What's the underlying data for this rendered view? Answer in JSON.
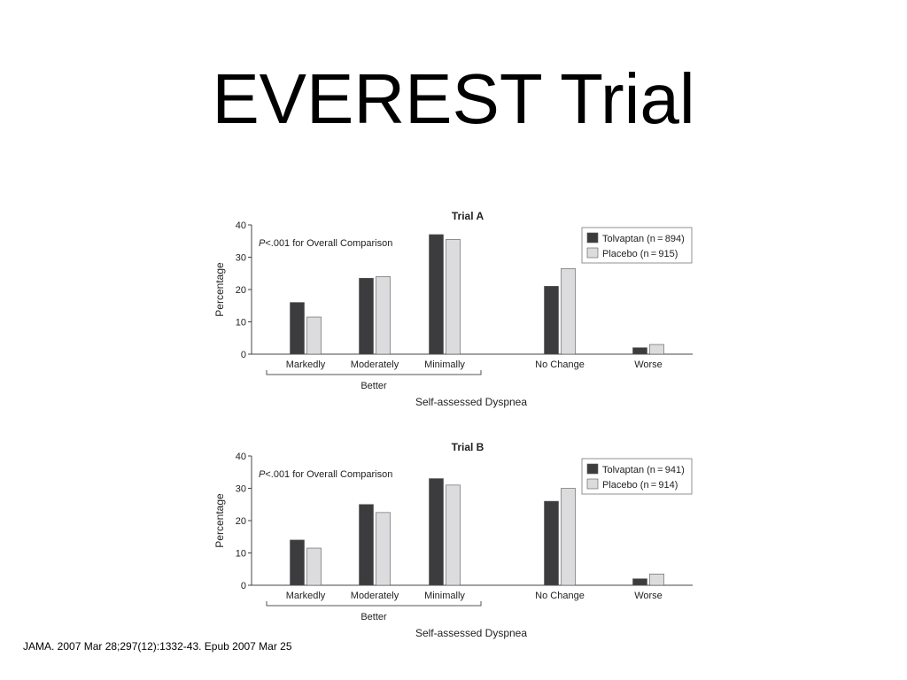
{
  "slide": {
    "title": "EVEREST Trial",
    "citation": "JAMA. 2007 Mar 28;297(12):1332-43. Epub 2007 Mar 25"
  },
  "colors": {
    "tolvaptan": "#3c3c3e",
    "placebo": "#dcdcde"
  },
  "chart_data": [
    {
      "type": "bar",
      "title": "Trial A",
      "annotation_prefix": "P",
      "annotation_suffix": "<.001 for Overall Comparison",
      "ylabel": "Percentage",
      "xlabel": "Self-assessed Dyspnea",
      "group_label": "Better",
      "categories": [
        "Markedly",
        "Moderately",
        "Minimally",
        "No Change",
        "Worse"
      ],
      "ylim": [
        0,
        40
      ],
      "yticks": [
        0,
        10,
        20,
        30,
        40
      ],
      "legend_position": "top-right",
      "grid": false,
      "series": [
        {
          "name": "Tolvaptan (n = 894)",
          "values": [
            16,
            23.5,
            37,
            21,
            2
          ]
        },
        {
          "name": "Placebo (n = 915)",
          "values": [
            11.5,
            24,
            35.5,
            26.5,
            3
          ]
        }
      ]
    },
    {
      "type": "bar",
      "title": "Trial B",
      "annotation_prefix": "P",
      "annotation_suffix": "<.001 for Overall Comparison",
      "ylabel": "Percentage",
      "xlabel": "Self-assessed Dyspnea",
      "group_label": "Better",
      "categories": [
        "Markedly",
        "Moderately",
        "Minimally",
        "No Change",
        "Worse"
      ],
      "ylim": [
        0,
        40
      ],
      "yticks": [
        0,
        10,
        20,
        30,
        40
      ],
      "legend_position": "top-right",
      "grid": false,
      "series": [
        {
          "name": "Tolvaptan (n = 941)",
          "values": [
            14,
            25,
            33,
            26,
            2
          ]
        },
        {
          "name": "Placebo (n = 914)",
          "values": [
            11.5,
            22.5,
            31,
            30,
            3.5
          ]
        }
      ]
    }
  ]
}
